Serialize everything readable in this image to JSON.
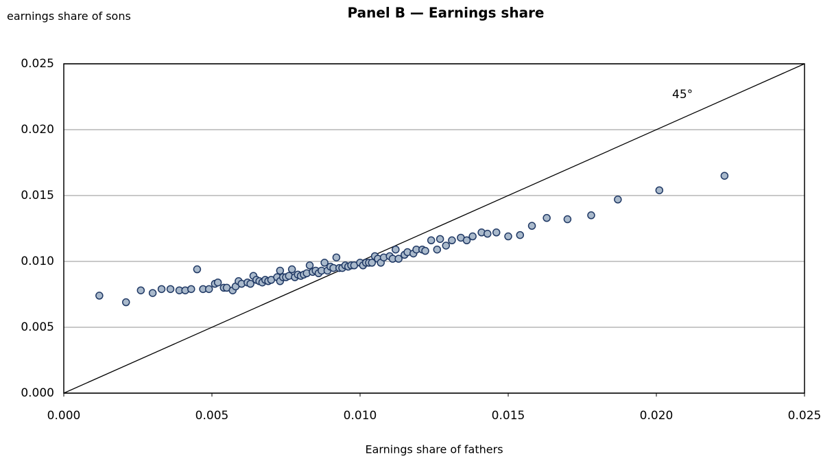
{
  "chart_data": {
    "type": "scatter",
    "title": "Panel B — Earnings share",
    "x_label": "Earnings share of fathers",
    "y_label": "earnings share of sons",
    "annotation": "45°",
    "color": "#a9b9cb",
    "edge_color": "#1f3864",
    "grid": true,
    "xlim": [
      0,
      0.025
    ],
    "ylim": [
      0,
      0.025
    ],
    "xticks": [
      {
        "value": 0,
        "label": "0.000"
      },
      {
        "value": 0.005,
        "label": "0.005"
      },
      {
        "value": 0.01,
        "label": "0.010"
      },
      {
        "value": 0.015,
        "label": "0.015"
      },
      {
        "value": 0.02,
        "label": "0.020"
      },
      {
        "value": 0.025,
        "label": "0.025"
      }
    ],
    "yticks": [
      {
        "value": 0,
        "label": "0.000"
      },
      {
        "value": 0.005,
        "label": "0.005"
      },
      {
        "value": 0.01,
        "label": "0.010"
      },
      {
        "value": 0.015,
        "label": "0.015"
      },
      {
        "value": 0.02,
        "label": "0.020"
      },
      {
        "value": 0.025,
        "label": "0.025"
      }
    ],
    "x": [
      0.0012,
      0.0021,
      0.0026,
      0.003,
      0.0033,
      0.0036,
      0.0039,
      0.0041,
      0.0043,
      0.0045,
      0.0047,
      0.0049,
      0.0051,
      0.0052,
      0.0054,
      0.0055,
      0.0057,
      0.0058,
      0.0059,
      0.006,
      0.0062,
      0.0063,
      0.0064,
      0.0065,
      0.0066,
      0.0067,
      0.0068,
      0.0069,
      0.007,
      0.0072,
      0.0073,
      0.0073,
      0.0074,
      0.0075,
      0.0076,
      0.0077,
      0.0078,
      0.0079,
      0.008,
      0.0081,
      0.0082,
      0.0083,
      0.0084,
      0.0085,
      0.0086,
      0.0087,
      0.0088,
      0.0089,
      0.009,
      0.0091,
      0.0092,
      0.0093,
      0.0094,
      0.0095,
      0.0096,
      0.0097,
      0.0098,
      0.01,
      0.0101,
      0.0102,
      0.0103,
      0.0104,
      0.0105,
      0.0106,
      0.0107,
      0.0108,
      0.011,
      0.0111,
      0.0112,
      0.0113,
      0.0115,
      0.0116,
      0.0118,
      0.0119,
      0.0121,
      0.0122,
      0.0124,
      0.0126,
      0.0127,
      0.0129,
      0.0131,
      0.0134,
      0.0136,
      0.0138,
      0.0141,
      0.0143,
      0.0146,
      0.015,
      0.0154,
      0.0158,
      0.0163,
      0.017,
      0.0178,
      0.0187,
      0.0201,
      0.0223
    ],
    "values": [
      0.0074,
      0.0069,
      0.0078,
      0.0076,
      0.0079,
      0.0079,
      0.0078,
      0.0078,
      0.0079,
      0.0094,
      0.0079,
      0.0079,
      0.0083,
      0.0084,
      0.008,
      0.008,
      0.0078,
      0.0081,
      0.0085,
      0.0083,
      0.0084,
      0.0083,
      0.0089,
      0.0086,
      0.0085,
      0.0084,
      0.0086,
      0.0085,
      0.0086,
      0.0088,
      0.0085,
      0.0093,
      0.0088,
      0.0088,
      0.0089,
      0.0094,
      0.0088,
      0.009,
      0.0089,
      0.009,
      0.0091,
      0.0097,
      0.0092,
      0.0093,
      0.0091,
      0.0093,
      0.0099,
      0.0093,
      0.0096,
      0.0095,
      0.0103,
      0.0095,
      0.0095,
      0.0097,
      0.0096,
      0.0097,
      0.0097,
      0.0099,
      0.0097,
      0.0099,
      0.0099,
      0.0099,
      0.0104,
      0.0102,
      0.0099,
      0.0103,
      0.0104,
      0.0102,
      0.0109,
      0.0102,
      0.0105,
      0.0107,
      0.0106,
      0.0109,
      0.0109,
      0.0108,
      0.0116,
      0.0109,
      0.0117,
      0.0112,
      0.0116,
      0.0118,
      0.0116,
      0.0119,
      0.0122,
      0.0121,
      0.0122,
      0.0119,
      0.012,
      0.0127,
      0.0133,
      0.0132,
      0.0135,
      0.0147,
      0.0154,
      0.0165
    ]
  }
}
